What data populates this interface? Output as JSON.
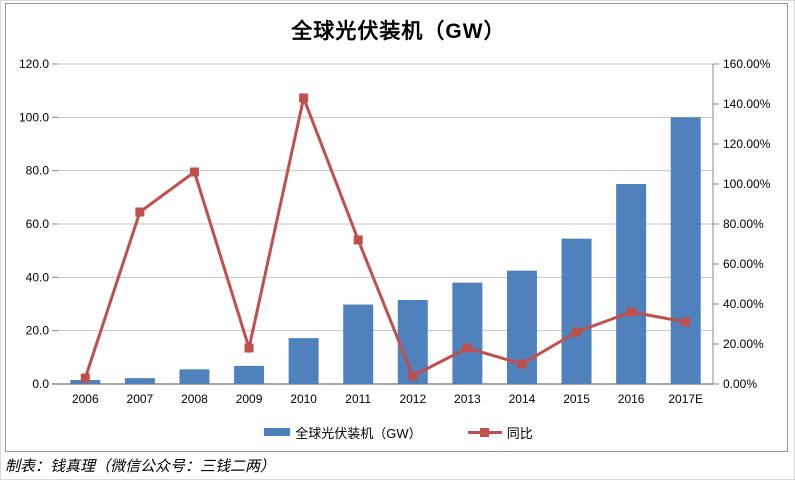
{
  "title": "全球光伏装机（GW）",
  "caption": "制表：钱真理（微信公众号：三钱二两）",
  "legend": {
    "items": [
      {
        "label": "全球光伏装机（GW）",
        "swatch": "bar-swatch-blue"
      },
      {
        "label": "同比",
        "swatch": "line-marker-swatch-red"
      }
    ]
  },
  "colors": {
    "bar": "#4F81BD",
    "line": "#C0504D",
    "gridline": "#C3C3C3",
    "axis": "#898989",
    "text": "#000000",
    "frame": "#969696"
  },
  "chart_data": {
    "type": "bar",
    "subtype": "combo-bar-line-dual-axis",
    "title": "全球光伏装机（GW）",
    "categories": [
      "2006",
      "2007",
      "2008",
      "2009",
      "2010",
      "2011",
      "2012",
      "2013",
      "2014",
      "2015",
      "2016",
      "2017E"
    ],
    "series": [
      {
        "name": "全球光伏装机（GW）",
        "type": "bar",
        "axis": "left",
        "values": [
          1.5,
          2.2,
          5.5,
          6.8,
          17.2,
          29.8,
          31.5,
          38.0,
          42.5,
          54.5,
          75.0,
          100.0
        ]
      },
      {
        "name": "同比",
        "type": "line",
        "axis": "right",
        "values_percent": [
          3,
          86,
          106,
          18,
          143,
          72,
          4,
          18,
          10,
          26,
          36,
          31
        ]
      }
    ],
    "left_axis": {
      "min": 0,
      "max": 120,
      "tick_step": 20,
      "ticks": [
        "0.0",
        "20.0",
        "40.0",
        "60.0",
        "80.0",
        "100.0",
        "120.0"
      ]
    },
    "right_axis": {
      "min_percent": 0,
      "max_percent": 160,
      "tick_step_percent": 20,
      "ticks": [
        "0.00%",
        "20.00%",
        "40.00%",
        "60.00%",
        "80.00%",
        "100.00%",
        "120.00%",
        "140.00%",
        "160.00%"
      ]
    },
    "grid": "horizontal-on",
    "legend_position": "bottom-center"
  }
}
